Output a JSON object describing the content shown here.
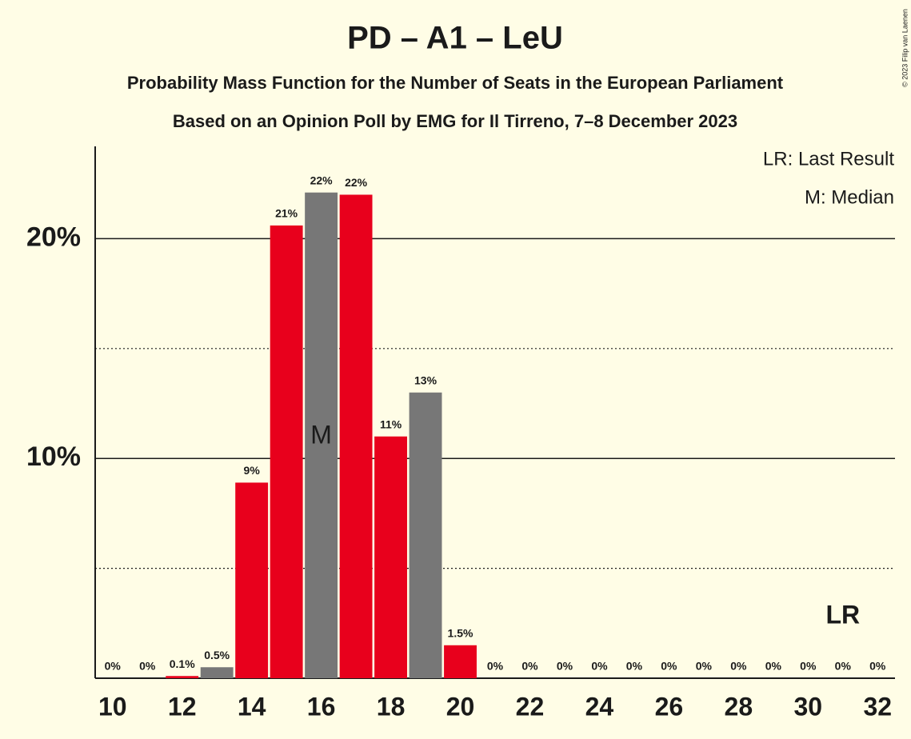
{
  "chart_data": {
    "type": "bar",
    "title": "PD – A1 – LeU",
    "subtitle": [
      "Probability Mass Function for the Number of Seats in the European Parliament",
      "Based on an Opinion Poll by EMG for Il Tirreno, 7–8 December 2023"
    ],
    "x": [
      10,
      11,
      12,
      13,
      14,
      15,
      16,
      17,
      18,
      19,
      20,
      21,
      22,
      23,
      24,
      25,
      26,
      27,
      28,
      29,
      30,
      31,
      32
    ],
    "values": [
      0,
      0,
      0.1,
      0.5,
      8.9,
      20.6,
      22.1,
      22.0,
      11.0,
      13.0,
      1.5,
      0,
      0,
      0,
      0,
      0,
      0,
      0,
      0,
      0,
      0,
      0,
      0
    ],
    "value_labels": [
      "0%",
      "0%",
      "0.1%",
      "0.5%",
      "9%",
      "21%",
      "22%",
      "22%",
      "11%",
      "13%",
      "1.5%",
      "0%",
      "0%",
      "0%",
      "0%",
      "0%",
      "0%",
      "0%",
      "0%",
      "0%",
      "0%",
      "0%",
      "0%"
    ],
    "colors": [
      "#e8001c",
      "#e8001c",
      "#e8001c",
      "#777777",
      "#e8001c",
      "#e8001c",
      "#777777",
      "#e8001c",
      "#e8001c",
      "#777777",
      "#e8001c",
      "#e8001c",
      "#e8001c",
      "#e8001c",
      "#e8001c",
      "#e8001c",
      "#e8001c",
      "#e8001c",
      "#e8001c",
      "#e8001c",
      "#e8001c",
      "#e8001c",
      "#e8001c"
    ],
    "xlim": [
      9.5,
      32.5
    ],
    "xticks": [
      10,
      12,
      14,
      16,
      18,
      20,
      22,
      24,
      26,
      28,
      30,
      32
    ],
    "ylim": [
      0,
      24.2
    ],
    "yticks": [
      {
        "value": 10,
        "label": "10%"
      },
      {
        "value": 20,
        "label": "20%"
      }
    ],
    "yminor": [
      5,
      15
    ],
    "median": 16,
    "median_label": "M",
    "last_result": 31,
    "last_result_label": "LR",
    "legend": [
      "LR: Last Result",
      "M: Median"
    ],
    "copyright": "© 2023 Filip van Laenen"
  }
}
